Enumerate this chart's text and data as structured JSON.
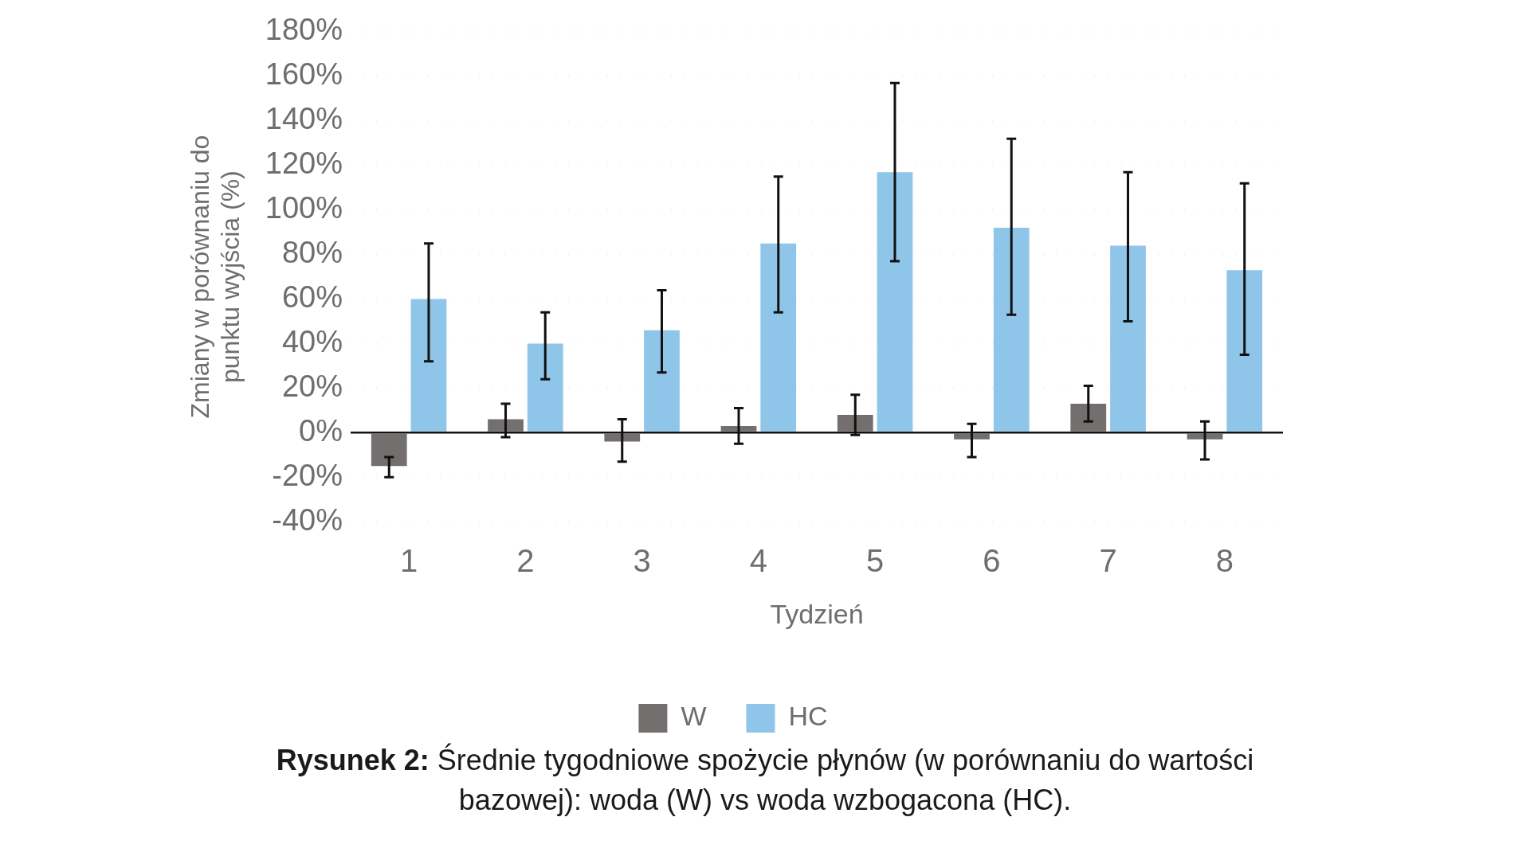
{
  "chart_data": {
    "type": "bar",
    "xlabel": "Tydzień",
    "ylabel": "Zmiany w porównaniu do\npunktu wyjścia (%)",
    "categories": [
      "1",
      "2",
      "3",
      "4",
      "5",
      "6",
      "7",
      "8"
    ],
    "series": [
      {
        "name": "W",
        "color": "#736f6e",
        "values": [
          -15,
          6,
          -4,
          3,
          8,
          -3,
          13,
          -3
        ],
        "errors": [
          [
            -20,
            -11
          ],
          [
            -2,
            13
          ],
          [
            -13,
            6
          ],
          [
            -5,
            11
          ],
          [
            -1,
            17
          ],
          [
            -11,
            4
          ],
          [
            5,
            21
          ],
          [
            -12,
            5
          ]
        ]
      },
      {
        "name": "HC",
        "color": "#8fc5e8",
        "values": [
          60,
          40,
          46,
          85,
          117,
          92,
          84,
          73
        ],
        "errors": [
          [
            32,
            85
          ],
          [
            24,
            54
          ],
          [
            27,
            64
          ],
          [
            54,
            115
          ],
          [
            77,
            157
          ],
          [
            53,
            132
          ],
          [
            50,
            117
          ],
          [
            35,
            112
          ]
        ]
      }
    ],
    "ylim": [
      -40,
      180
    ],
    "yticks": [
      {
        "value": -40,
        "label": "-40%"
      },
      {
        "value": -20,
        "label": "-20%"
      },
      {
        "value": 0,
        "label": "0%"
      },
      {
        "value": 20,
        "label": "20%"
      },
      {
        "value": 40,
        "label": "40%"
      },
      {
        "value": 60,
        "label": "60%"
      },
      {
        "value": 80,
        "label": "80%"
      },
      {
        "value": 100,
        "label": "100%"
      },
      {
        "value": 120,
        "label": "120%"
      },
      {
        "value": 140,
        "label": "140%"
      },
      {
        "value": 160,
        "label": "160%"
      },
      {
        "value": 180,
        "label": "180%"
      }
    ],
    "grid": "y",
    "legend": "bottom",
    "annotations": [
      "Rysunek 2: Średnie tygodniowe spożycie płynów (w porównaniu do wartości bazowej): woda (W) vs woda wzbogacona (HC)."
    ]
  }
}
